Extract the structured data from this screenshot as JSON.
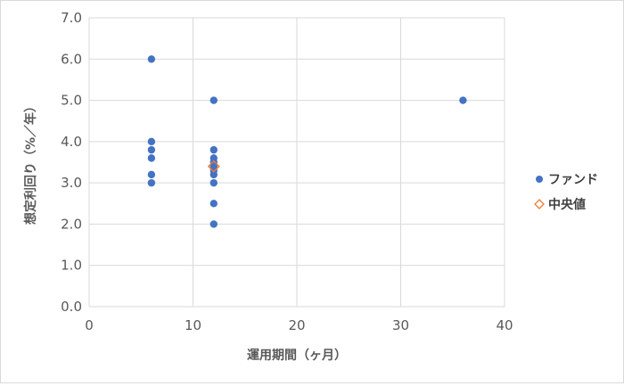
{
  "chart_data": {
    "type": "scatter",
    "xlabel": "運用期間（ヶ月）",
    "ylabel": "想定利回り（%／年）",
    "xlim": [
      0,
      40
    ],
    "ylim": [
      0,
      7
    ],
    "x_ticks": [
      "0",
      "10",
      "20",
      "30",
      "40"
    ],
    "y_ticks": [
      "0.0",
      "1.0",
      "2.0",
      "3.0",
      "4.0",
      "5.0",
      "6.0",
      "7.0"
    ],
    "grid": true,
    "legend_position": "right",
    "series": [
      {
        "name": "ファンド",
        "marker": "circle",
        "color": "#4472c4",
        "points": [
          [
            6,
            6.0
          ],
          [
            6,
            4.0
          ],
          [
            6,
            3.8
          ],
          [
            6,
            3.6
          ],
          [
            6,
            3.2
          ],
          [
            6,
            3.0
          ],
          [
            12,
            5.0
          ],
          [
            12,
            3.8
          ],
          [
            12,
            3.6
          ],
          [
            12,
            3.5
          ],
          [
            12,
            3.4
          ],
          [
            12,
            3.3
          ],
          [
            12,
            3.2
          ],
          [
            12,
            3.0
          ],
          [
            12,
            2.5
          ],
          [
            12,
            2.0
          ],
          [
            36,
            5.0
          ]
        ]
      },
      {
        "name": "中央値",
        "marker": "diamond",
        "color": "#ed7d31",
        "points": [
          [
            12,
            3.4
          ]
        ]
      }
    ]
  }
}
